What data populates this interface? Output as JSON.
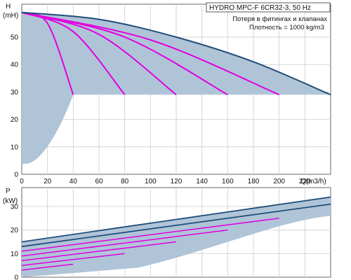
{
  "chart_data": [
    {
      "type": "line",
      "title": "HYDRO MPC-F 6CR32-3, 50 Hz",
      "notes": [
        "Потеря в фитингах и клапанах",
        "Плотность = 1000 kg/m3"
      ],
      "ylabel": "H",
      "yunit": "(mH)",
      "xunit": "Q(m3/h)",
      "xlim": [
        0,
        240
      ],
      "ylim": [
        0,
        62
      ],
      "xticks": [
        "0",
        "20",
        "40",
        "60",
        "80",
        "100",
        "120",
        "140",
        "160",
        "180",
        "200",
        "220"
      ],
      "yticks": [
        "0",
        "10",
        "20",
        "30",
        "40",
        "50"
      ],
      "grid": true,
      "colors": {
        "envelope": "#1f4e79",
        "curves": "#e000e0",
        "band": "#b0c4d8"
      },
      "series": [
        {
          "x": [
            0,
            20,
            40
          ],
          "y": [
            59,
            55,
            29
          ]
        },
        {
          "x": [
            0,
            40,
            80
          ],
          "y": [
            59,
            52,
            29
          ]
        },
        {
          "x": [
            0,
            60,
            120
          ],
          "y": [
            59,
            51,
            29
          ]
        },
        {
          "x": [
            0,
            80,
            160
          ],
          "y": [
            59,
            50,
            29
          ]
        },
        {
          "x": [
            0,
            100,
            200
          ],
          "y": [
            59,
            49,
            29
          ]
        },
        {
          "x": [
            0,
            60,
            120,
            180,
            240
          ],
          "y": [
            59,
            56.5,
            50,
            41,
            29
          ]
        }
      ]
    },
    {
      "type": "line",
      "ylabel": "P",
      "yunit": "(kW)",
      "xlim": [
        0,
        240
      ],
      "ylim": [
        0,
        38
      ],
      "yticks": [
        "0",
        "10",
        "20",
        "30"
      ],
      "grid": true,
      "colors": {
        "envelope": "#1f4e79",
        "curves": "#e000e0",
        "band": "#b0c4d8"
      },
      "series": [
        {
          "x": [
            0,
            120,
            240
          ],
          "y": [
            15,
            24.5,
            34
          ]
        },
        {
          "x": [
            0,
            120,
            240
          ],
          "y": [
            13,
            22,
            31
          ]
        },
        {
          "x": [
            0,
            100,
            200
          ],
          "y": [
            11,
            18,
            25
          ]
        },
        {
          "x": [
            0,
            80,
            160
          ],
          "y": [
            9,
            14.5,
            20
          ]
        },
        {
          "x": [
            0,
            60,
            120
          ],
          "y": [
            7,
            11,
            15
          ]
        },
        {
          "x": [
            0,
            40,
            80
          ],
          "y": [
            5,
            7.5,
            10
          ]
        },
        {
          "x": [
            0,
            20,
            40
          ],
          "y": [
            3,
            4.3,
            5.5
          ]
        }
      ]
    }
  ]
}
